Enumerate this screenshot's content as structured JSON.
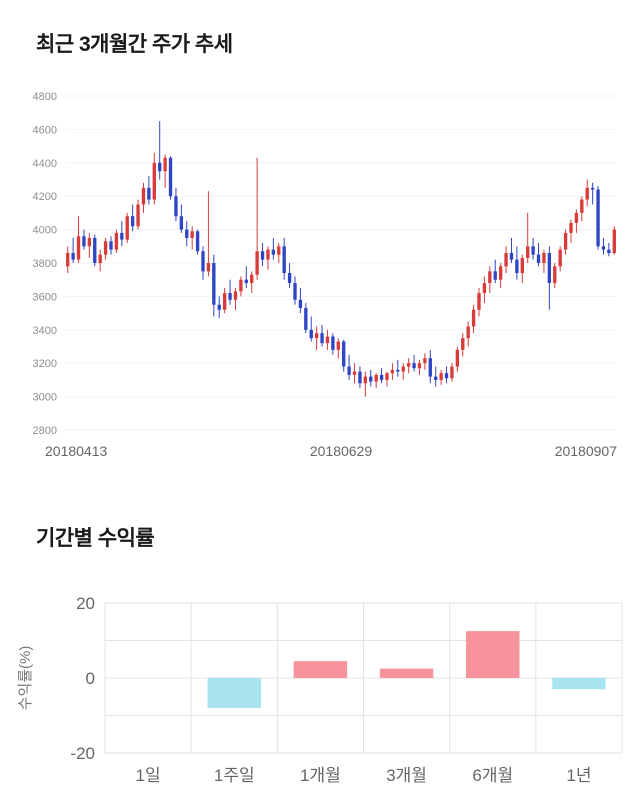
{
  "page": {
    "title_price": "최근 3개월간 주가 추세",
    "title_returns": "기간별 수익률"
  },
  "chart_data": [
    {
      "type": "candlestick",
      "title": "최근 3개월간 주가 추세",
      "xlabel": "",
      "ylabel": "",
      "ylim": [
        2800,
        4800
      ],
      "yticks": [
        2800,
        3000,
        3200,
        3400,
        3600,
        3800,
        4000,
        4200,
        4400,
        4600,
        4800
      ],
      "x_axis_labels": [
        "20180413",
        "20180629",
        "20180907"
      ],
      "up_color": "#d93b3b",
      "down_color": "#2f45c5",
      "grid": true,
      "candles": [
        [
          3780,
          3900,
          3740,
          3860
        ],
        [
          3860,
          3950,
          3800,
          3820
        ],
        [
          3820,
          4080,
          3800,
          3960
        ],
        [
          3960,
          4000,
          3880,
          3900
        ],
        [
          3900,
          3980,
          3830,
          3950
        ],
        [
          3950,
          3970,
          3780,
          3800
        ],
        [
          3800,
          3880,
          3750,
          3850
        ],
        [
          3850,
          3950,
          3820,
          3930
        ],
        [
          3930,
          3960,
          3850,
          3880
        ],
        [
          3880,
          4000,
          3860,
          3980
        ],
        [
          3980,
          4050,
          3900,
          3940
        ],
        [
          3940,
          4100,
          3920,
          4080
        ],
        [
          4080,
          4150,
          3990,
          4020
        ],
        [
          4020,
          4180,
          4000,
          4150
        ],
        [
          4150,
          4280,
          4100,
          4250
        ],
        [
          4250,
          4320,
          4150,
          4180
        ],
        [
          4180,
          4460,
          4150,
          4400
        ],
        [
          4400,
          4650,
          4300,
          4350
        ],
        [
          4350,
          4450,
          4250,
          4430
        ],
        [
          4430,
          4440,
          4180,
          4200
        ],
        [
          4200,
          4250,
          4050,
          4080
        ],
        [
          4080,
          4150,
          3980,
          4000
        ],
        [
          4000,
          4050,
          3900,
          3950
        ],
        [
          3950,
          4020,
          3880,
          3990
        ],
        [
          3990,
          4000,
          3850,
          3870
        ],
        [
          3870,
          3900,
          3700,
          3750
        ],
        [
          3750,
          4230,
          3720,
          3800
        ],
        [
          3800,
          3850,
          3480,
          3550
        ],
        [
          3550,
          3600,
          3470,
          3520
        ],
        [
          3520,
          3650,
          3500,
          3620
        ],
        [
          3620,
          3700,
          3550,
          3580
        ],
        [
          3580,
          3650,
          3520,
          3630
        ],
        [
          3630,
          3720,
          3600,
          3700
        ],
        [
          3700,
          3780,
          3650,
          3680
        ],
        [
          3680,
          3750,
          3620,
          3730
        ],
        [
          3730,
          4430,
          3700,
          3870
        ],
        [
          3870,
          3920,
          3780,
          3820
        ],
        [
          3820,
          3900,
          3760,
          3880
        ],
        [
          3880,
          3950,
          3820,
          3850
        ],
        [
          3850,
          3920,
          3800,
          3900
        ],
        [
          3900,
          3950,
          3700,
          3740
        ],
        [
          3740,
          3800,
          3650,
          3680
        ],
        [
          3680,
          3720,
          3550,
          3580
        ],
        [
          3580,
          3650,
          3500,
          3530
        ],
        [
          3530,
          3560,
          3380,
          3400
        ],
        [
          3400,
          3480,
          3330,
          3350
        ],
        [
          3350,
          3420,
          3280,
          3380
        ],
        [
          3380,
          3430,
          3300,
          3320
        ],
        [
          3320,
          3400,
          3280,
          3360
        ],
        [
          3360,
          3380,
          3250,
          3280
        ],
        [
          3280,
          3350,
          3230,
          3330
        ],
        [
          3330,
          3340,
          3150,
          3180
        ],
        [
          3180,
          3250,
          3100,
          3130
        ],
        [
          3130,
          3200,
          3080,
          3150
        ],
        [
          3150,
          3180,
          3050,
          3080
        ],
        [
          3080,
          3150,
          3000,
          3120
        ],
        [
          3120,
          3160,
          3060,
          3090
        ],
        [
          3090,
          3140,
          3050,
          3130
        ],
        [
          3130,
          3170,
          3080,
          3100
        ],
        [
          3100,
          3150,
          3060,
          3140
        ],
        [
          3140,
          3200,
          3100,
          3160
        ],
        [
          3160,
          3220,
          3120,
          3150
        ],
        [
          3150,
          3200,
          3100,
          3180
        ],
        [
          3180,
          3230,
          3140,
          3200
        ],
        [
          3200,
          3250,
          3150,
          3170
        ],
        [
          3170,
          3220,
          3130,
          3200
        ],
        [
          3200,
          3260,
          3160,
          3230
        ],
        [
          3230,
          3280,
          3080,
          3120
        ],
        [
          3120,
          3180,
          3060,
          3100
        ],
        [
          3100,
          3160,
          3070,
          3140
        ],
        [
          3140,
          3180,
          3080,
          3110
        ],
        [
          3110,
          3200,
          3090,
          3180
        ],
        [
          3180,
          3300,
          3150,
          3280
        ],
        [
          3280,
          3380,
          3240,
          3350
        ],
        [
          3350,
          3450,
          3300,
          3420
        ],
        [
          3420,
          3550,
          3380,
          3520
        ],
        [
          3520,
          3650,
          3480,
          3620
        ],
        [
          3620,
          3720,
          3560,
          3680
        ],
        [
          3680,
          3780,
          3620,
          3750
        ],
        [
          3750,
          3820,
          3680,
          3700
        ],
        [
          3700,
          3800,
          3650,
          3780
        ],
        [
          3780,
          3900,
          3740,
          3860
        ],
        [
          3860,
          3950,
          3800,
          3820
        ],
        [
          3820,
          3900,
          3700,
          3740
        ],
        [
          3740,
          3850,
          3680,
          3830
        ],
        [
          3830,
          4100,
          3800,
          3900
        ],
        [
          3900,
          3950,
          3820,
          3850
        ],
        [
          3850,
          3920,
          3780,
          3800
        ],
        [
          3800,
          3880,
          3740,
          3860
        ],
        [
          3860,
          3900,
          3520,
          3680
        ],
        [
          3680,
          3800,
          3650,
          3780
        ],
        [
          3780,
          3900,
          3750,
          3880
        ],
        [
          3880,
          4000,
          3850,
          3980
        ],
        [
          3980,
          4060,
          3920,
          4040
        ],
        [
          4040,
          4120,
          3980,
          4100
        ],
        [
          4100,
          4200,
          4050,
          4180
        ],
        [
          4180,
          4300,
          4140,
          4250
        ],
        [
          4250,
          4280,
          4150,
          4240
        ],
        [
          4240,
          4260,
          3880,
          3900
        ],
        [
          3900,
          3950,
          3850,
          3880
        ],
        [
          3880,
          3920,
          3840,
          3860
        ],
        [
          3860,
          4020,
          3850,
          4000
        ]
      ]
    },
    {
      "type": "bar",
      "title": "기간별 수익률",
      "xlabel": "",
      "ylabel": "수익률(%)",
      "categories": [
        "1일",
        "1주일",
        "1개월",
        "3개월",
        "6개월",
        "1년"
      ],
      "values": [
        0,
        -8,
        4.5,
        2.5,
        12.5,
        -3
      ],
      "ylim": [
        -20,
        20
      ],
      "yticks": [
        -20,
        0,
        20
      ],
      "grid": true,
      "legend": "none",
      "positive_color": "#f7939c",
      "negative_color": "#a8e4ef",
      "grid_color": "#e3e3e3"
    }
  ]
}
